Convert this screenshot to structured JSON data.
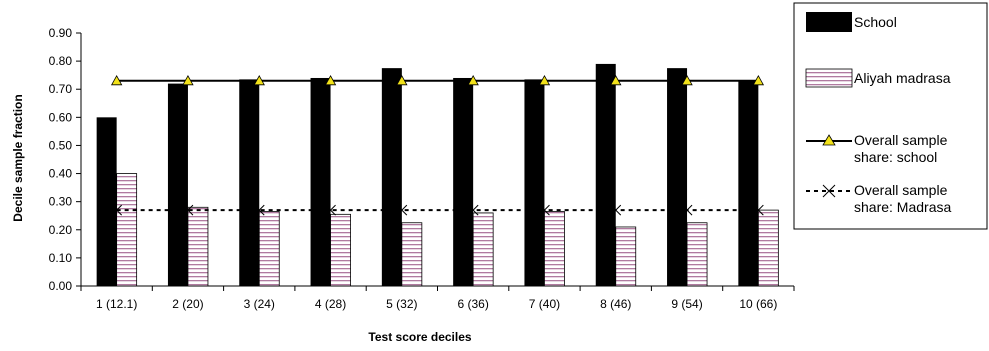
{
  "chart_data": {
    "type": "bar",
    "xlabel": "Test score deciles",
    "ylabel": "Decile sample fraction",
    "ylim": [
      0,
      0.9
    ],
    "yticks": [
      "0.00",
      "0.10",
      "0.20",
      "0.30",
      "0.40",
      "0.50",
      "0.60",
      "0.70",
      "0.80",
      "0.90"
    ],
    "categories": [
      "1 (12.1)",
      "2 (20)",
      "3 (24)",
      "4 (28)",
      "5 (32)",
      "6 (36)",
      "7 (40)",
      "8 (46)",
      "9 (54)",
      "10 (66)"
    ],
    "grid": false,
    "legend_position": "right",
    "series": [
      {
        "name": "School",
        "kind": "bar",
        "fill": "solid-black",
        "color": "#000000",
        "values": [
          0.6,
          0.72,
          0.735,
          0.74,
          0.775,
          0.74,
          0.735,
          0.79,
          0.775,
          0.73
        ]
      },
      {
        "name": "Aliyah madrasa",
        "kind": "bar",
        "fill": "horizontal-stripes",
        "color": "#c8a0b8",
        "values": [
          0.4,
          0.28,
          0.265,
          0.255,
          0.225,
          0.26,
          0.265,
          0.21,
          0.225,
          0.27
        ]
      },
      {
        "name": "Overall sample share: school",
        "kind": "line",
        "marker": "triangle",
        "marker_color": "#f2e21a",
        "color": "#000000",
        "values": [
          0.73,
          0.73,
          0.73,
          0.73,
          0.73,
          0.73,
          0.73,
          0.73,
          0.73,
          0.73
        ]
      },
      {
        "name": "Overall sample share: Madrasa",
        "kind": "line",
        "marker": "x",
        "line_style": "dotted",
        "color": "#000000",
        "values": [
          0.27,
          0.27,
          0.27,
          0.27,
          0.27,
          0.27,
          0.27,
          0.27,
          0.27,
          0.27
        ]
      }
    ],
    "legend": {
      "school": "School",
      "aliyah": "Aliyah madrasa",
      "school_line_1": "Overall sample",
      "school_line_2": "share: school",
      "madrasa_line_1": "Overall sample",
      "madrasa_line_2": "share: Madrasa"
    }
  }
}
